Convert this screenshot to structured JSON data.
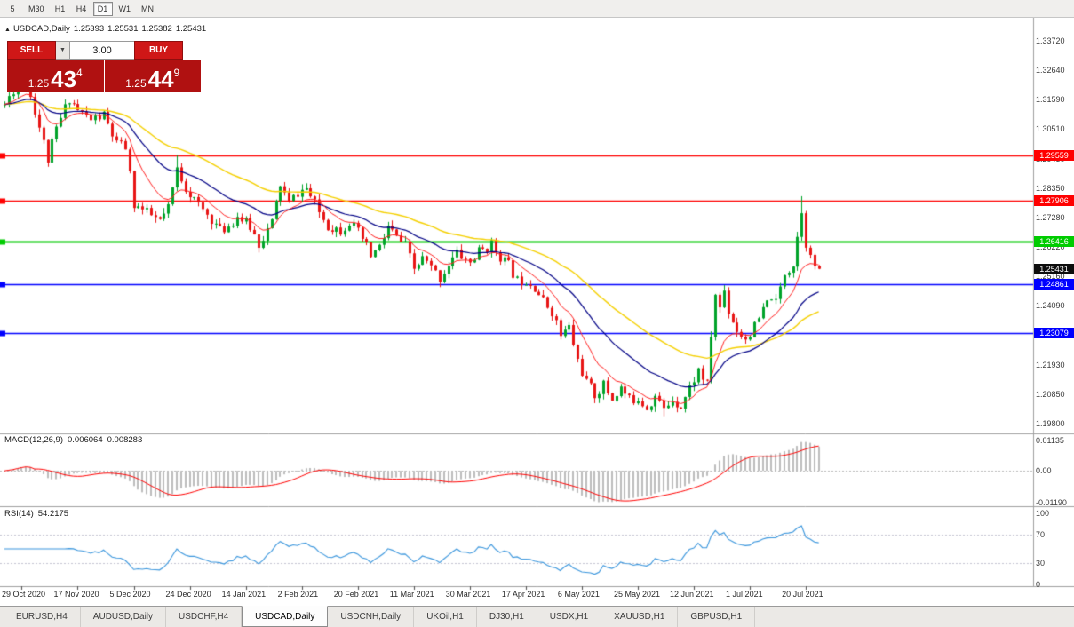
{
  "timeframe_bar": {
    "items": [
      "5",
      "M30",
      "H1",
      "H4",
      "D1",
      "W1",
      "MN"
    ],
    "active": "D1"
  },
  "chart_header": {
    "icon": "▲",
    "symbol": "USDCAD,Daily",
    "open": "1.25393",
    "high": "1.25531",
    "low": "1.25382",
    "close": "1.25431"
  },
  "trade_panel": {
    "sell_label": "SELL",
    "buy_label": "BUY",
    "volume": "3.00",
    "dropdown_icon": "▼",
    "sell_price": {
      "base": "1.25",
      "big": "43",
      "sup": "4"
    },
    "buy_price": {
      "base": "1.25",
      "big": "44",
      "sup": "9"
    },
    "button_color": "#cf1717",
    "panel_color": "#b01111"
  },
  "price_axis": {
    "ticks": [
      "1.33720",
      "1.32640",
      "1.31590",
      "1.30510",
      "1.29430",
      "1.28350",
      "1.27280",
      "1.26220",
      "1.25160",
      "1.24090",
      "1.23010",
      "1.21930",
      "1.20850",
      "1.19800"
    ]
  },
  "hlines": [
    {
      "value": 1.29559,
      "label": "1.29559",
      "color": "#ff0000",
      "width": 1.4
    },
    {
      "value": 1.27906,
      "label": "1.27906",
      "color": "#ff0000",
      "width": 1.4
    },
    {
      "value": 1.26416,
      "label": "1.26416",
      "color": "#00cc00",
      "width": 2.2
    },
    {
      "value": 1.24861,
      "label": "1.24861",
      "color": "#0000ff",
      "width": 1.4
    },
    {
      "value": 1.23079,
      "label": "1.23079",
      "color": "#0000ff",
      "width": 1.4
    }
  ],
  "current_price_badge": {
    "value": 1.25431,
    "label": "1.25431",
    "color": "#0d0d0d"
  },
  "macd_panel": {
    "title": "MACD(12,26,9)",
    "value_main": "0.006064",
    "value_signal": "0.008283",
    "axis": [
      {
        "label": "0.01135",
        "value": 0.01135
      },
      {
        "label": "0.00",
        "value": 0
      },
      {
        "label": "-0.01190",
        "value": -0.0119
      }
    ],
    "max": 0.01135,
    "min": -0.0119,
    "histogram_color": "#bdbdbd",
    "signal_color": "#ff0000"
  },
  "rsi_panel": {
    "title": "RSI(14)",
    "value": "54.2175",
    "axis": [
      {
        "label": "100",
        "value": 100
      },
      {
        "label": "70",
        "value": 70
      },
      {
        "label": "30",
        "value": 30
      },
      {
        "label": "0",
        "value": 0
      }
    ],
    "levels": [
      70,
      30
    ],
    "line_color": "#3a96dd"
  },
  "time_axis": {
    "labels": [
      "29 Oct 2020",
      "17 Nov 2020",
      "5 Dec 2020",
      "24 Dec 2020",
      "14 Jan 2021",
      "2 Feb 2021",
      "20 Feb 2021",
      "11 Mar 2021",
      "30 Mar 2021",
      "17 Apr 2021",
      "6 May 2021",
      "25 May 2021",
      "12 Jun 2021",
      "1 Jul 2021",
      "20 Jul 2021"
    ],
    "bars": [
      4,
      17,
      30,
      43,
      56,
      69,
      82,
      95,
      108,
      121,
      134,
      147,
      160,
      173,
      186
    ]
  },
  "tabs": {
    "items": [
      "EURUSD,H4",
      "AUDUSD,Daily",
      "USDCHF,H4",
      "USDCAD,Daily",
      "USDCNH,Daily",
      "UKOil,H1",
      "DJ30,H1",
      "USDX,H1",
      "XAUUSD,H1",
      "GBPUSD,H1"
    ],
    "active": "USDCAD,Daily"
  },
  "chart_data": {
    "type": "candlestick",
    "symbol": "USDCAD",
    "timeframe": "Daily",
    "view_high": 1.3372,
    "view_low": 1.198,
    "bar_count": 190,
    "seed": 11,
    "noise": 0.0042,
    "wick": 0.0021,
    "last_close": 1.25431,
    "up_color": "#00a32a",
    "down_color": "#e81515",
    "price_anchors": [
      [
        0,
        1.314
      ],
      [
        2,
        1.3195
      ],
      [
        5,
        1.3225
      ],
      [
        7,
        1.312
      ],
      [
        10,
        1.294
      ],
      [
        12,
        1.305
      ],
      [
        15,
        1.3165
      ],
      [
        17,
        1.312
      ],
      [
        20,
        1.3085
      ],
      [
        23,
        1.31
      ],
      [
        26,
        1.2995
      ],
      [
        28,
        1.2985
      ],
      [
        30,
        1.278
      ],
      [
        33,
        1.2745
      ],
      [
        36,
        1.2715
      ],
      [
        38,
        1.276
      ],
      [
        40,
        1.2905
      ],
      [
        42,
        1.284
      ],
      [
        45,
        1.277
      ],
      [
        48,
        1.2725
      ],
      [
        50,
        1.268
      ],
      [
        52,
        1.27
      ],
      [
        54,
        1.2735
      ],
      [
        57,
        1.2695
      ],
      [
        59,
        1.2635
      ],
      [
        62,
        1.271
      ],
      [
        64,
        1.285
      ],
      [
        66,
        1.278
      ],
      [
        68,
        1.282
      ],
      [
        70,
        1.2835
      ],
      [
        72,
        1.2775
      ],
      [
        75,
        1.27
      ],
      [
        78,
        1.2685
      ],
      [
        80,
        1.2715
      ],
      [
        83,
        1.265
      ],
      [
        85,
        1.259
      ],
      [
        87,
        1.262
      ],
      [
        89,
        1.2695
      ],
      [
        91,
        1.2655
      ],
      [
        93,
        1.2625
      ],
      [
        95,
        1.254
      ],
      [
        97,
        1.258
      ],
      [
        99,
        1.2545
      ],
      [
        101,
        1.251
      ],
      [
        103,
        1.256
      ],
      [
        105,
        1.26
      ],
      [
        108,
        1.2565
      ],
      [
        110,
        1.2605
      ],
      [
        113,
        1.263
      ],
      [
        115,
        1.259
      ],
      [
        117,
        1.2555
      ],
      [
        119,
        1.25
      ],
      [
        121,
        1.2505
      ],
      [
        123,
        1.248
      ],
      [
        125,
        1.2425
      ],
      [
        127,
        1.239
      ],
      [
        129,
        1.23
      ],
      [
        131,
        1.233
      ],
      [
        133,
        1.221
      ],
      [
        135,
        1.213
      ],
      [
        137,
        1.2085
      ],
      [
        139,
        1.212
      ],
      [
        141,
        1.207
      ],
      [
        143,
        1.211
      ],
      [
        145,
        1.2065
      ],
      [
        147,
        1.2075
      ],
      [
        149,
        1.204
      ],
      [
        151,
        1.208
      ],
      [
        153,
        1.203
      ],
      [
        155,
        1.207
      ],
      [
        157,
        1.2045
      ],
      [
        159,
        1.211
      ],
      [
        161,
        1.2175
      ],
      [
        163,
        1.212
      ],
      [
        164,
        1.23
      ],
      [
        165,
        1.245
      ],
      [
        166,
        1.24
      ],
      [
        167,
        1.2465
      ],
      [
        168,
        1.239
      ],
      [
        170,
        1.232
      ],
      [
        172,
        1.229
      ],
      [
        174,
        1.233
      ],
      [
        176,
        1.239
      ],
      [
        178,
        1.2445
      ],
      [
        179,
        1.2415
      ],
      [
        181,
        1.253
      ],
      [
        183,
        1.256
      ],
      [
        184,
        1.266
      ],
      [
        185,
        1.276
      ],
      [
        186,
        1.264
      ],
      [
        187,
        1.258
      ],
      [
        188,
        1.2555
      ],
      [
        189,
        1.25431
      ]
    ],
    "overrides": [
      {
        "bar": 10,
        "low": 1.292
      },
      {
        "bar": 40,
        "high": 1.2957
      },
      {
        "bar": 153,
        "low": 1.2007
      },
      {
        "bar": 185,
        "high": 1.2807
      }
    ],
    "moving_averages": [
      {
        "period": 10,
        "type": "ema",
        "color": "#ff2020",
        "width": 1
      },
      {
        "period": 25,
        "type": "ema",
        "color": "#000085",
        "width": 1.2
      },
      {
        "period": 50,
        "type": "ema",
        "color": "#f5d000",
        "width": 1.4
      }
    ],
    "indicators": {
      "macd": {
        "fast": 12,
        "slow": 26,
        "signal": 9
      },
      "rsi": {
        "period": 14
      }
    }
  }
}
